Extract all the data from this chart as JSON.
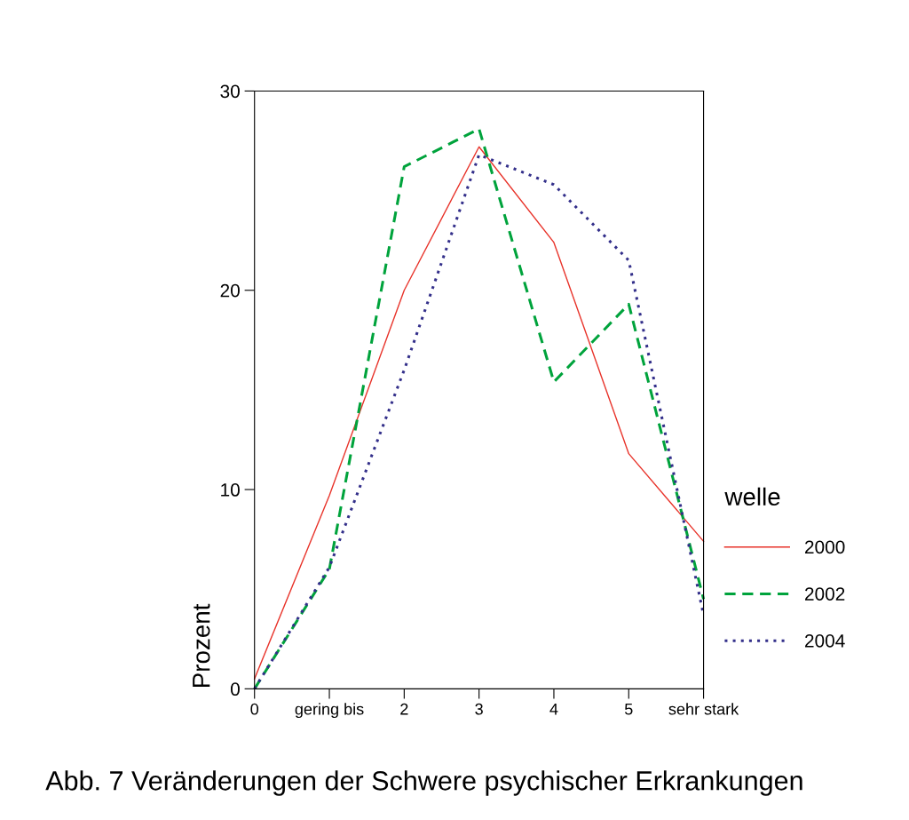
{
  "chart_data": {
    "type": "line",
    "categories": [
      "0",
      "gering bis",
      "2",
      "3",
      "4",
      "5",
      "sehr stark"
    ],
    "ylabel": "Prozent",
    "ylim": [
      0,
      30
    ],
    "yticks": [
      0,
      10,
      20,
      30
    ],
    "legend_title": "welle",
    "legend": "right",
    "grid": false,
    "annotations": [
      "Abb. 7 Veränderungen der Schwere psychischer Erkrankungen"
    ],
    "series": [
      {
        "name": "2000",
        "color": "#e8332a",
        "line_style": "solid",
        "values": [
          0.5,
          9.7,
          20.0,
          27.2,
          22.4,
          11.8,
          7.4
        ]
      },
      {
        "name": "2002",
        "color": "#00a33c",
        "line_style": "dashed",
        "values": [
          0,
          6.0,
          26.2,
          28.1,
          15.4,
          19.3,
          4.5
        ]
      },
      {
        "name": "2004",
        "color": "#332f8a",
        "line_style": "dotted",
        "values": [
          0,
          6.1,
          16.0,
          26.8,
          25.3,
          21.5,
          3.7
        ]
      }
    ]
  }
}
